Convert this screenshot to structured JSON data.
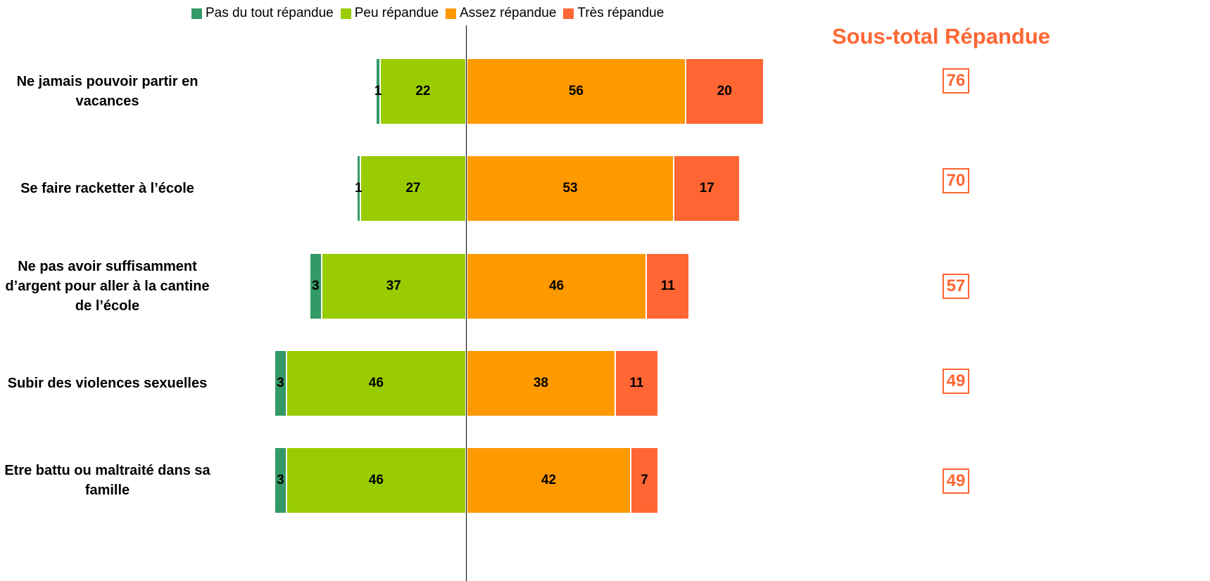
{
  "chart_data": {
    "type": "diverging-bar",
    "categories": [
      "Ne jamais pouvoir partir en vacances",
      "Se faire racketter à l’école",
      "Ne pas avoir suffisamment d’argent pour aller à la cantine de l’école",
      "Subir des violences sexuelles",
      "Etre battu ou maltraité dans sa famille"
    ],
    "series": [
      {
        "name": "Pas du tout répandue",
        "color": "#339966",
        "side": "negative",
        "values": [
          1,
          1,
          3,
          3,
          3
        ]
      },
      {
        "name": "Peu répandue",
        "color": "#99cc00",
        "side": "negative",
        "values": [
          22,
          27,
          37,
          46,
          46
        ]
      },
      {
        "name": "Assez répandue",
        "color": "#ff9900",
        "side": "positive",
        "values": [
          56,
          53,
          46,
          38,
          42
        ]
      },
      {
        "name": "Très répandue",
        "color": "#ff6633",
        "side": "positive",
        "values": [
          20,
          17,
          11,
          11,
          7
        ]
      }
    ],
    "subtotal": {
      "title": "Sous-total Répandue",
      "values": [
        76,
        70,
        57,
        49,
        49
      ]
    }
  }
}
